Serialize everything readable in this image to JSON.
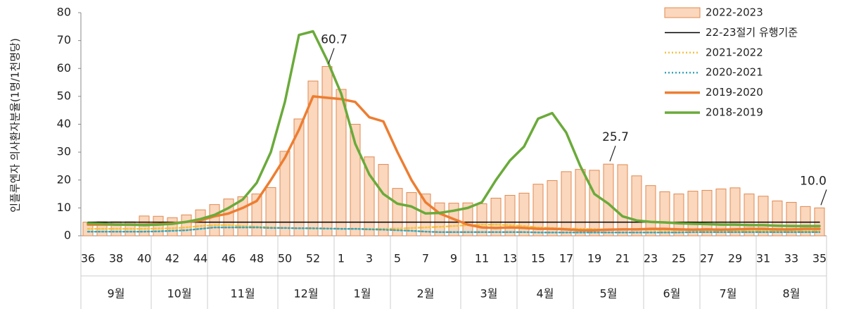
{
  "chart_data": {
    "type": "bar",
    "y_label": "인플루엔자 의사환자분율(1명/1천명당)",
    "categories": [
      "36",
      null,
      "38",
      null,
      "40",
      null,
      "42",
      null,
      "44",
      null,
      "46",
      null,
      "48",
      null,
      "50",
      null,
      "52",
      null,
      "1",
      null,
      "3",
      null,
      "5",
      null,
      "7",
      null,
      "9",
      null,
      "11",
      null,
      "13",
      null,
      "15",
      null,
      "17",
      null,
      "19",
      null,
      "21",
      null,
      "23",
      null,
      "25",
      null,
      "27",
      null,
      "29",
      null,
      "31",
      null,
      "33",
      null,
      "35"
    ],
    "months": [
      {
        "label": "9월",
        "start": 0
      },
      {
        "label": "10월",
        "start": 5
      },
      {
        "label": "11월",
        "start": 9
      },
      {
        "label": "12월",
        "start": 14
      },
      {
        "label": "1월",
        "start": 18
      },
      {
        "label": "2월",
        "start": 22
      },
      {
        "label": "3월",
        "start": 27
      },
      {
        "label": "4월",
        "start": 31
      },
      {
        "label": "5월",
        "start": 35
      },
      {
        "label": "6월",
        "start": 40
      },
      {
        "label": "7월",
        "start": 44
      },
      {
        "label": "8월",
        "start": 48
      }
    ],
    "ylim": [
      0,
      80
    ],
    "yticks": [
      0,
      10,
      20,
      30,
      40,
      50,
      60,
      70,
      80
    ],
    "legend": "upper right",
    "series": [
      {
        "name": "2022-2023",
        "type": "bar",
        "color": "#fad7bd",
        "edge": "#e08a52",
        "values": [
          4.9,
          5,
          5,
          5,
          7.1,
          7,
          6.5,
          7.5,
          9.3,
          11.2,
          13.2,
          14,
          15,
          17.3,
          30.3,
          41.9,
          55.5,
          60.7,
          52.5,
          40,
          28.3,
          25.6,
          17,
          15.5,
          15,
          11.8,
          11.7,
          11.8,
          11.5,
          13.5,
          14.5,
          15.3,
          18.5,
          19.8,
          23,
          23.8,
          23.5,
          25.7,
          25.5,
          21.5,
          18,
          15.8,
          15,
          16,
          16.3,
          16.8,
          17.2,
          15,
          14.2,
          12.5,
          12,
          10.5,
          10
        ],
        "value_labels": [
          null,
          null,
          null,
          null,
          null,
          null,
          null,
          null,
          null,
          null,
          null,
          null,
          null,
          null,
          null,
          null,
          null,
          "60.7",
          null,
          null,
          null,
          null,
          null,
          null,
          null,
          null,
          null,
          null,
          null,
          null,
          null,
          null,
          null,
          null,
          null,
          null,
          null,
          "25.7",
          null,
          null,
          null,
          null,
          null,
          null,
          null,
          null,
          null,
          null,
          null,
          null,
          null,
          null,
          "10.0"
        ]
      },
      {
        "name": "22-23절기 유행기준",
        "type": "line",
        "color": "#000000",
        "width": 1.5,
        "dash": "solid",
        "values": [
          4.9,
          4.9,
          4.9,
          4.9,
          4.9,
          4.9,
          4.9,
          4.9,
          4.9,
          4.9,
          4.9,
          4.9,
          4.9,
          4.9,
          4.9,
          4.9,
          4.9,
          4.9,
          4.9,
          4.9,
          4.9,
          4.9,
          4.9,
          4.9,
          4.9,
          4.9,
          4.9,
          4.9,
          4.9,
          4.9,
          4.9,
          4.9,
          4.9,
          4.9,
          4.9,
          4.9,
          4.9,
          4.9,
          4.9,
          4.9,
          4.9,
          4.9,
          4.9,
          4.9,
          4.9,
          4.9,
          4.9,
          4.9,
          4.9,
          4.9,
          4.9,
          4.9,
          4.9
        ]
      },
      {
        "name": "2021-2022",
        "type": "line",
        "color": "#f5c242",
        "width": 2.5,
        "dash": "dotted",
        "values": [
          2.5,
          2.5,
          2.5,
          2.5,
          2.5,
          2.6,
          2.7,
          3,
          3.5,
          3.8,
          3.8,
          3.5,
          3.3,
          3,
          2.8,
          2.7,
          2.6,
          2.6,
          2.5,
          2.5,
          2.5,
          2.5,
          2.6,
          2.8,
          3,
          3.2,
          3.5,
          3.8,
          4,
          4,
          3.8,
          3.5,
          3,
          2.8,
          2.6,
          2.5,
          2.4,
          2.3,
          2.2,
          2.2,
          2.1,
          2,
          2,
          2,
          1.9,
          1.9,
          1.8,
          1.8,
          1.8,
          1.7,
          1.7,
          1.7,
          1.7
        ]
      },
      {
        "name": "2020-2021",
        "type": "line",
        "color": "#3aa6b9",
        "width": 2.5,
        "dash": "dotted",
        "values": [
          1.5,
          1.5,
          1.5,
          1.5,
          1.5,
          1.6,
          1.8,
          2,
          2.5,
          3,
          3,
          3,
          3,
          2.8,
          2.8,
          2.7,
          2.7,
          2.6,
          2.5,
          2.5,
          2.3,
          2.2,
          2,
          1.8,
          1.5,
          1.3,
          1.3,
          1.3,
          1.3,
          1.3,
          1.3,
          1.3,
          1.2,
          1.2,
          1.2,
          1.2,
          1.2,
          1.2,
          1.2,
          1.2,
          1.2,
          1.2,
          1.2,
          1.3,
          1.3,
          1.3,
          1.3,
          1.3,
          1.3,
          1.3,
          1.3,
          1.3,
          1.3
        ]
      },
      {
        "name": "2019-2020",
        "type": "line",
        "color": "#ed7d31",
        "width": 3.5,
        "dash": "solid",
        "values": [
          4,
          4,
          4,
          4,
          4,
          4.2,
          4.5,
          5,
          5.5,
          7,
          8,
          10,
          12.5,
          20,
          28,
          38,
          50,
          49.5,
          49,
          48,
          42.5,
          41,
          30,
          20,
          12,
          8,
          6,
          4,
          3,
          2.8,
          3,
          2.8,
          2.5,
          2.5,
          2.3,
          2,
          2,
          2.2,
          2.3,
          2.3,
          2.5,
          2.5,
          2.3,
          2.2,
          2.3,
          2.2,
          2.3,
          2.5,
          2.5,
          2.3,
          2.3,
          2.5,
          2.5
        ]
      },
      {
        "name": "2018-2019",
        "type": "line",
        "color": "#6aaa3a",
        "width": 3.5,
        "dash": "solid",
        "values": [
          4.5,
          4.3,
          4,
          4,
          3.8,
          4,
          4.3,
          5,
          6,
          7.5,
          10,
          13,
          19,
          30,
          48,
          72,
          73.3,
          63,
          51,
          33,
          22,
          15,
          11.5,
          10.5,
          8,
          8.2,
          9,
          10,
          12,
          20,
          27,
          32,
          42,
          44,
          37,
          25,
          15,
          11.5,
          7,
          5.5,
          5,
          4.8,
          4.5,
          4.3,
          4.2,
          4,
          4,
          3.8,
          3.8,
          3.6,
          3.5,
          3.5,
          3.5
        ]
      }
    ]
  }
}
